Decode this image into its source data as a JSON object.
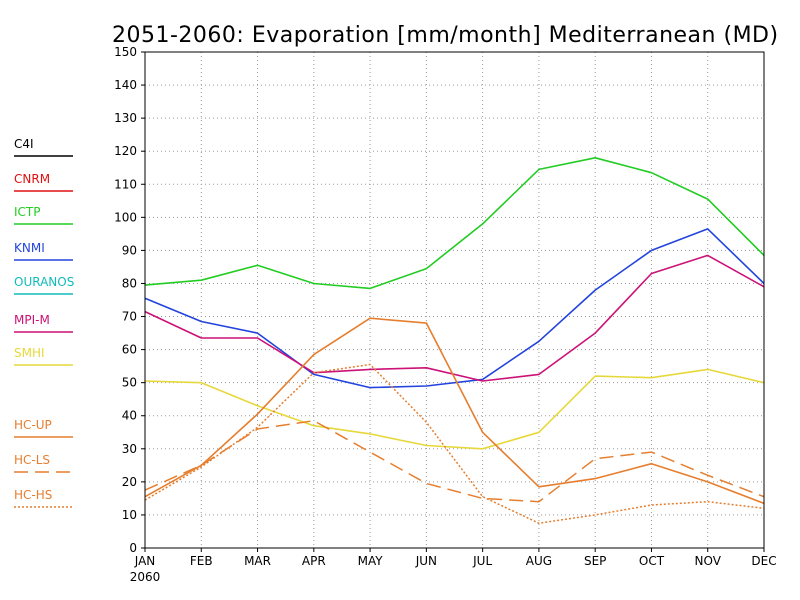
{
  "chart_data": {
    "type": "line",
    "title": "2051-2060: Evaporation [mm/month] Mediterranean (MD)",
    "xlabel": "",
    "ylabel": "",
    "x_categories": [
      "JAN",
      "FEB",
      "MAR",
      "APR",
      "MAY",
      "JUN",
      "JUL",
      "AUG",
      "SEP",
      "OCT",
      "NOV",
      "DEC"
    ],
    "x_sublabel": "2060",
    "ylim": [
      0,
      150
    ],
    "yticks": [
      0,
      10,
      20,
      30,
      40,
      50,
      60,
      70,
      80,
      90,
      100,
      110,
      120,
      130,
      140,
      150
    ],
    "grid": true,
    "legend_position": "left",
    "series": [
      {
        "name": "C4I",
        "color": "#000000",
        "style": "solid",
        "values": []
      },
      {
        "name": "CNRM",
        "color": "#e01010",
        "style": "solid",
        "values": []
      },
      {
        "name": "ICTP",
        "color": "#22cc22",
        "style": "solid",
        "values": [
          79.5,
          81,
          85.5,
          80,
          78.5,
          84.5,
          98,
          114.5,
          118,
          113.5,
          105.5,
          88.5
        ]
      },
      {
        "name": "KNMI",
        "color": "#2244dd",
        "style": "solid",
        "values": [
          75.5,
          68.5,
          65,
          52.5,
          48.5,
          49,
          51,
          62.5,
          78,
          90,
          96.5,
          80
        ]
      },
      {
        "name": "OURANOS",
        "color": "#11bbbb",
        "style": "solid",
        "values": []
      },
      {
        "name": "MPI-M",
        "color": "#cc1177",
        "style": "solid",
        "values": [
          71.5,
          63.5,
          63.5,
          53,
          54,
          54.5,
          50.5,
          52.5,
          65,
          83,
          88.5,
          79
        ]
      },
      {
        "name": "SMHI",
        "color": "#e6d83a",
        "style": "solid",
        "values": [
          50.5,
          50,
          43,
          37,
          34.5,
          31,
          30,
          35,
          52,
          51.5,
          54,
          50
        ]
      },
      {
        "name": "HC-UP",
        "color": "#e67e2e",
        "style": "solid",
        "values": [
          15.5,
          25,
          40.5,
          58.5,
          69.5,
          68,
          35,
          18.5,
          21,
          25.5,
          20,
          13.5
        ]
      },
      {
        "name": "HC-LS",
        "color": "#e67e2e",
        "style": "dashed",
        "values": [
          17.5,
          25,
          36,
          38.5,
          29,
          19.5,
          15,
          14,
          27,
          29,
          22,
          15.5
        ]
      },
      {
        "name": "HC-HS",
        "color": "#e67e2e",
        "style": "dotted",
        "values": [
          14.5,
          24.5,
          36.5,
          53,
          55.5,
          38,
          15.5,
          7.5,
          10,
          13,
          14,
          12
        ]
      }
    ]
  }
}
